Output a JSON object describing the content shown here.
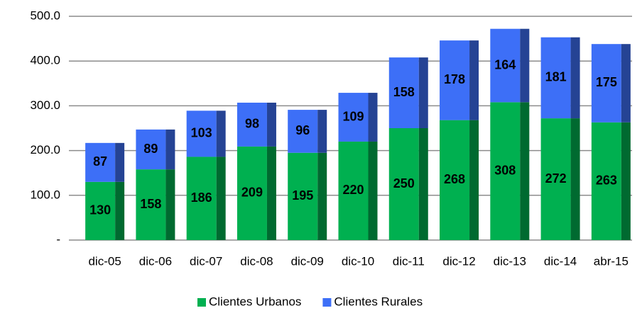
{
  "chart_data": {
    "type": "stacked_bar",
    "categories": [
      "dic-05",
      "dic-06",
      "dic-07",
      "dic-08",
      "dic-09",
      "dic-10",
      "dic-11",
      "dic-12",
      "dic-13",
      "dic-14",
      "abr-15"
    ],
    "series": [
      {
        "name": "Clientes Urbanos",
        "color": "#00b050",
        "values": [
          130,
          158,
          186,
          209,
          195,
          220,
          250,
          268,
          308,
          272,
          263
        ]
      },
      {
        "name": "Clientes Rurales",
        "color": "#3d6ff7",
        "values": [
          87,
          89,
          103,
          98,
          96,
          109,
          158,
          178,
          164,
          181,
          175
        ]
      }
    ],
    "ylim": [
      0,
      500
    ],
    "yticks": [
      {
        "value": 0,
        "label": "-"
      },
      {
        "value": 100,
        "label": "100.0"
      },
      {
        "value": 200,
        "label": "200.0"
      },
      {
        "value": 300,
        "label": "300.0"
      },
      {
        "value": 400,
        "label": "400.0"
      },
      {
        "value": 500,
        "label": "500.0"
      }
    ],
    "grid": true,
    "legend": "bottom"
  }
}
